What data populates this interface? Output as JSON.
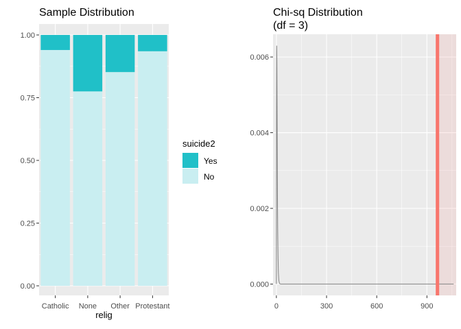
{
  "chart_data": [
    {
      "type": "bar",
      "subtype": "stacked-proportion",
      "title": "Sample Distribution",
      "xlabel": "relig",
      "ylabel": "",
      "categories": [
        "Catholic",
        "None",
        "Other",
        "Protestant"
      ],
      "ylim": [
        0,
        1
      ],
      "yticks": [
        "0.00",
        "0.25",
        "0.50",
        "0.75",
        "1.00"
      ],
      "series": [
        {
          "name": "Yes",
          "color": "#20C0C8",
          "values": [
            0.06,
            0.225,
            0.148,
            0.065
          ]
        },
        {
          "name": "No",
          "color": "#C9EEF1",
          "values": [
            0.94,
            0.775,
            0.852,
            0.935
          ]
        }
      ],
      "legend": {
        "title": "suicide2",
        "position": "right",
        "items": [
          "Yes",
          "No"
        ]
      },
      "grid": true,
      "panel_background": "#EBEBEB"
    },
    {
      "type": "line",
      "title": "Chi-sq Distribution",
      "subtitle": "(df = 3)",
      "xlabel": "",
      "ylabel": "",
      "xlim": [
        -20,
        1075
      ],
      "ylim": [
        -0.0003,
        0.0066
      ],
      "xticks": [
        "0",
        "300",
        "600",
        "900"
      ],
      "yticks": [
        "0.000",
        "0.002",
        "0.004",
        "0.006"
      ],
      "series": [
        {
          "color": "#808080",
          "x": [
            0,
            1,
            2,
            3,
            4,
            5,
            6,
            7,
            8,
            10,
            12,
            15,
            18,
            20,
            25,
            30,
            40,
            60,
            100,
            300,
            600,
            900,
            1100
          ],
          "y": [
            0,
            0.0045,
            0.0063,
            0.0059,
            0.0049,
            0.0038,
            0.0028,
            0.002,
            0.0014,
            0.0007,
            0.0003,
            9e-05,
            3e-05,
            1e-05,
            0,
            0,
            0,
            0,
            0,
            0,
            0,
            0,
            0
          ]
        }
      ],
      "reference_line": {
        "x": 963,
        "color": "#F8766D"
      },
      "shaded_region": {
        "from": 963,
        "to": 1075,
        "color": "#F8766D",
        "opacity": 0.12
      },
      "grid": true,
      "panel_background": "#EBEBEB"
    }
  ]
}
